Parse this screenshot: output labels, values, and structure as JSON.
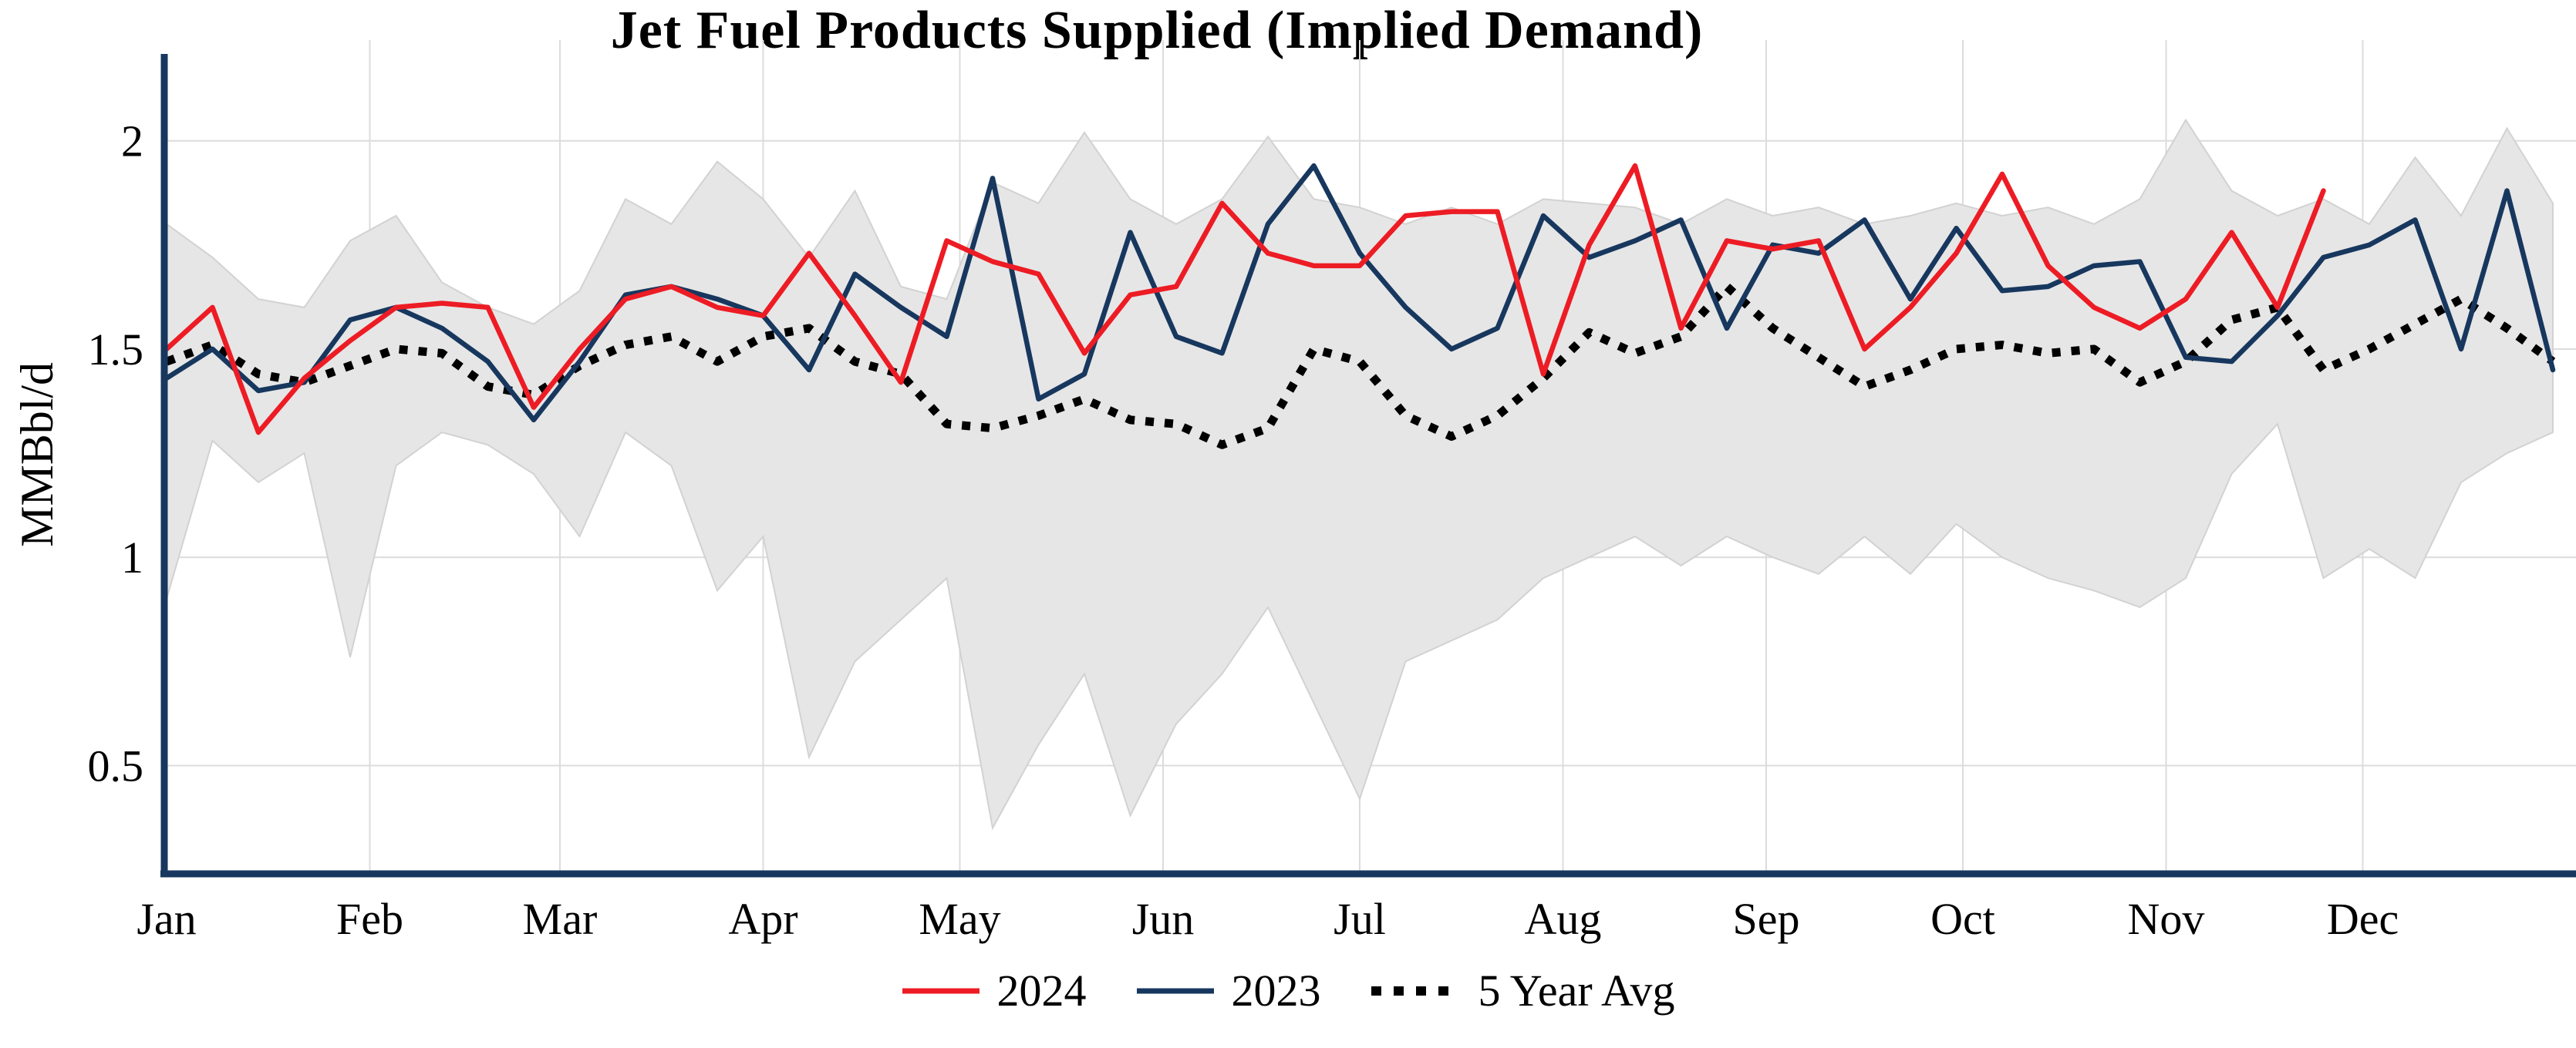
{
  "chart_data": {
    "type": "line",
    "title": "Jet Fuel Products Supplied (Implied Demand)",
    "ylabel": "MMBbl/d",
    "xlabel": "",
    "x_axis": {
      "unit": "week of year",
      "tick_labels": [
        "Jan",
        "Feb",
        "Mar",
        "Apr",
        "May",
        "Jun",
        "Jul",
        "Aug",
        "Sep",
        "Oct",
        "Nov",
        "Dec"
      ]
    },
    "y_axis": {
      "ticks": [
        0.5,
        1,
        1.5,
        2
      ],
      "range": [
        0.24,
        2.19
      ]
    },
    "grid": true,
    "legend_position": "bottom",
    "colors": {
      "axis": "#17375e",
      "gridline": "#dcdcdc",
      "band_fill": "#e6e6e6",
      "band_edge": "#d2d2d2"
    },
    "band": {
      "description_from_pixels": "shaded weekly range behind lines",
      "color": "#e6e6e6",
      "upper": [
        1.8,
        1.72,
        1.62,
        1.6,
        1.76,
        1.82,
        1.66,
        1.6,
        1.56,
        1.64,
        1.86,
        1.8,
        1.95,
        1.86,
        1.72,
        1.88,
        1.65,
        1.62,
        1.9,
        1.85,
        2.02,
        1.86,
        1.8,
        1.86,
        2.01,
        1.86,
        1.84,
        1.8,
        1.84,
        1.8,
        1.86,
        1.85,
        1.84,
        1.8,
        1.86,
        1.82,
        1.84,
        1.8,
        1.82,
        1.85,
        1.82,
        1.84,
        1.8,
        1.86,
        2.05,
        1.88,
        1.82,
        1.86,
        1.8,
        1.96,
        1.82,
        2.03,
        1.85
      ],
      "lower": [
        0.9,
        1.28,
        1.18,
        1.25,
        0.76,
        1.22,
        1.3,
        1.27,
        1.2,
        1.05,
        1.3,
        1.22,
        0.92,
        1.05,
        0.52,
        0.75,
        0.85,
        0.95,
        0.35,
        0.55,
        0.72,
        0.38,
        0.6,
        0.72,
        0.88,
        0.65,
        0.42,
        0.75,
        0.8,
        0.85,
        0.95,
        1.0,
        1.05,
        0.98,
        1.05,
        1.0,
        0.96,
        1.05,
        0.96,
        1.08,
        1.0,
        0.95,
        0.92,
        0.88,
        0.95,
        1.2,
        1.32,
        0.95,
        1.02,
        0.95,
        1.18,
        1.25,
        1.3
      ]
    },
    "series": [
      {
        "name": "2024",
        "color": "#ed1c24",
        "style": "solid",
        "values": [
          1.5,
          1.6,
          1.3,
          1.43,
          1.52,
          1.6,
          1.61,
          1.6,
          1.36,
          1.5,
          1.62,
          1.65,
          1.6,
          1.58,
          1.73,
          1.58,
          1.42,
          1.76,
          1.71,
          1.68,
          1.49,
          1.63,
          1.65,
          1.85,
          1.73,
          1.7,
          1.7,
          1.82,
          1.83,
          1.83,
          1.44,
          1.75,
          1.94,
          1.55,
          1.76,
          1.74,
          1.76,
          1.5,
          1.6,
          1.73,
          1.92,
          1.7,
          1.6,
          1.55,
          1.62,
          1.78,
          1.6,
          1.88
        ]
      },
      {
        "name": "2023",
        "color": "#17375e",
        "style": "solid",
        "values": [
          1.43,
          1.5,
          1.4,
          1.42,
          1.57,
          1.6,
          1.55,
          1.47,
          1.33,
          1.47,
          1.63,
          1.65,
          1.62,
          1.58,
          1.45,
          1.68,
          1.6,
          1.53,
          1.91,
          1.38,
          1.44,
          1.78,
          1.53,
          1.49,
          1.8,
          1.94,
          1.73,
          1.6,
          1.5,
          1.55,
          1.82,
          1.72,
          1.76,
          1.81,
          1.55,
          1.75,
          1.73,
          1.81,
          1.62,
          1.79,
          1.64,
          1.65,
          1.7,
          1.71,
          1.48,
          1.47,
          1.58,
          1.72,
          1.75,
          1.81,
          1.5,
          1.88,
          1.45
        ]
      },
      {
        "name": "5 Year Avg",
        "color": "#000000",
        "style": "dotted",
        "values": [
          1.47,
          1.51,
          1.44,
          1.42,
          1.46,
          1.5,
          1.49,
          1.41,
          1.39,
          1.46,
          1.51,
          1.53,
          1.47,
          1.53,
          1.55,
          1.47,
          1.44,
          1.32,
          1.31,
          1.34,
          1.38,
          1.33,
          1.32,
          1.27,
          1.31,
          1.5,
          1.47,
          1.34,
          1.29,
          1.34,
          1.43,
          1.54,
          1.49,
          1.53,
          1.65,
          1.55,
          1.48,
          1.41,
          1.45,
          1.5,
          1.51,
          1.49,
          1.5,
          1.42,
          1.47,
          1.57,
          1.6,
          1.45,
          1.5,
          1.56,
          1.62,
          1.55,
          1.47
        ]
      }
    ]
  }
}
